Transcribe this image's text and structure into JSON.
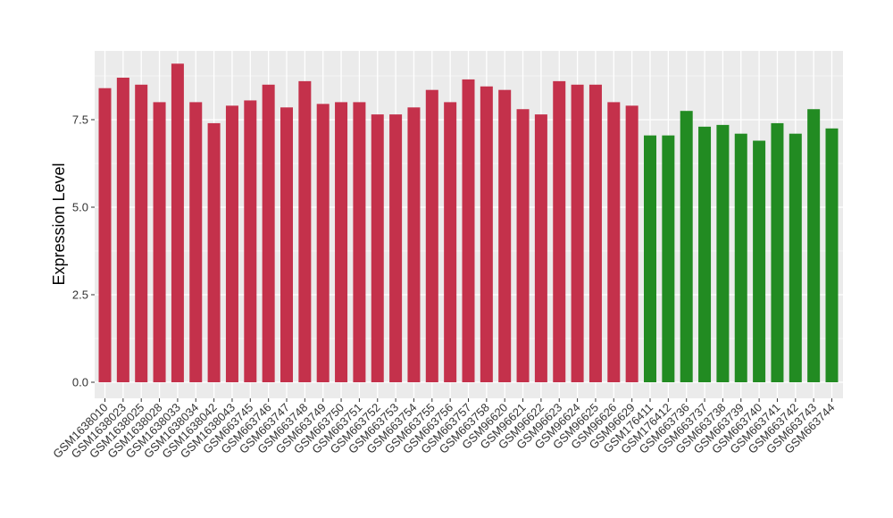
{
  "chart_data": {
    "type": "bar",
    "title": "",
    "xlabel": "",
    "ylabel": "Expression Level",
    "ylim": [
      0,
      9.3
    ],
    "yticks": [
      "0.0",
      "2.5",
      "5.0",
      "7.5"
    ],
    "grid": true,
    "legend": "none",
    "colors": {
      "group1": "#C4314B",
      "group2": "#228B22",
      "panel": "#EBEBEB",
      "grid": "#FFFFFF"
    },
    "categories": [
      "GSM1638010",
      "GSM1638023",
      "GSM1638025",
      "GSM1638028",
      "GSM1638033",
      "GSM1638034",
      "GSM1638042",
      "GSM1638043",
      "GSM663745",
      "GSM663746",
      "GSM663747",
      "GSM663748",
      "GSM663749",
      "GSM663750",
      "GSM663751",
      "GSM663752",
      "GSM663753",
      "GSM663754",
      "GSM663755",
      "GSM663756",
      "GSM663757",
      "GSM663758",
      "GSM96620",
      "GSM96621",
      "GSM96622",
      "GSM96623",
      "GSM96624",
      "GSM96625",
      "GSM96626",
      "GSM96629",
      "GSM176411",
      "GSM176412",
      "GSM663736",
      "GSM663737",
      "GSM663738",
      "GSM663739",
      "GSM663740",
      "GSM663741",
      "GSM663742",
      "GSM663743",
      "GSM663744"
    ],
    "values": [
      8.4,
      8.7,
      8.5,
      8.0,
      9.1,
      8.0,
      7.4,
      7.9,
      8.05,
      8.5,
      7.85,
      8.6,
      7.95,
      8.0,
      8.0,
      7.65,
      7.65,
      7.85,
      8.35,
      8.0,
      8.65,
      8.45,
      8.35,
      7.8,
      7.65,
      8.6,
      8.5,
      8.5,
      8.0,
      7.9,
      7.05,
      7.05,
      7.75,
      7.3,
      7.35,
      7.1,
      6.9,
      7.4,
      7.1,
      7.8,
      7.25
    ],
    "groups": [
      "group1",
      "group1",
      "group1",
      "group1",
      "group1",
      "group1",
      "group1",
      "group1",
      "group1",
      "group1",
      "group1",
      "group1",
      "group1",
      "group1",
      "group1",
      "group1",
      "group1",
      "group1",
      "group1",
      "group1",
      "group1",
      "group1",
      "group1",
      "group1",
      "group1",
      "group1",
      "group1",
      "group1",
      "group1",
      "group1",
      "group2",
      "group2",
      "group2",
      "group2",
      "group2",
      "group2",
      "group2",
      "group2",
      "group2",
      "group2",
      "group2"
    ]
  }
}
